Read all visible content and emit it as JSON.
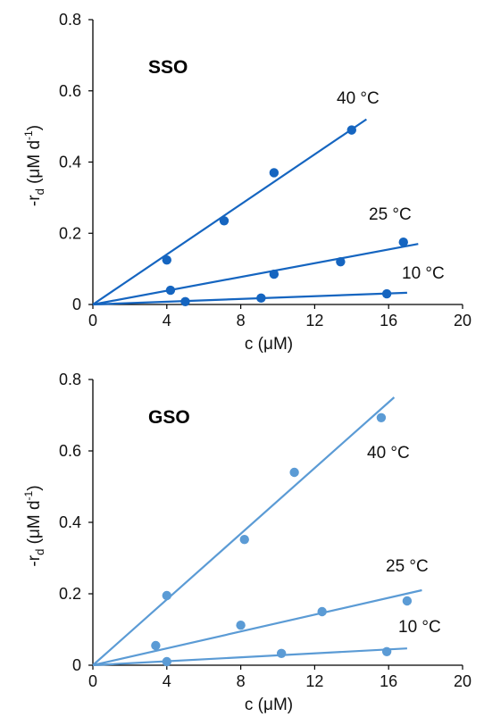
{
  "chart_data": [
    {
      "type": "scatter",
      "title": "SSO",
      "xlabel_main": "c (",
      "xlabel_unit": "μM",
      "xlabel_close": ")",
      "ylabel_main": "-r",
      "ylabel_sub": "d",
      "ylabel_paren": " (μM d",
      "ylabel_sup": "-1",
      "ylabel_close": ")",
      "xlim": [
        0,
        20
      ],
      "ylim": [
        0,
        0.8
      ],
      "xticks": [
        "0",
        "4",
        "8",
        "12",
        "16",
        "20"
      ],
      "yticks": [
        "0",
        "0.2",
        "0.4",
        "0.6",
        "0.8"
      ],
      "grid": false,
      "color": "#1565C0",
      "series": [
        {
          "name": "40 °C",
          "points": [
            [
              4.0,
              0.125
            ],
            [
              7.1,
              0.235
            ],
            [
              9.8,
              0.37
            ],
            [
              14.0,
              0.49
            ]
          ],
          "fit": [
            [
              0,
              0
            ],
            [
              14.8,
              0.52
            ]
          ]
        },
        {
          "name": "25 °C",
          "points": [
            [
              4.2,
              0.04
            ],
            [
              9.8,
              0.085
            ],
            [
              13.4,
              0.12
            ],
            [
              16.8,
              0.175
            ]
          ],
          "fit": [
            [
              0,
              0
            ],
            [
              17.6,
              0.17
            ]
          ]
        },
        {
          "name": "10 °C",
          "points": [
            [
              5.0,
              0.008
            ],
            [
              9.1,
              0.018
            ],
            [
              15.9,
              0.03
            ]
          ],
          "fit": [
            [
              0,
              0
            ],
            [
              17.0,
              0.033
            ]
          ]
        }
      ]
    },
    {
      "type": "scatter",
      "title": "GSO",
      "xlabel_main": "c (",
      "xlabel_unit": "μM",
      "xlabel_close": ")",
      "ylabel_main": "-r",
      "ylabel_sub": "d",
      "ylabel_paren": " (μM d",
      "ylabel_sup": "-1",
      "ylabel_close": ")",
      "xlim": [
        0,
        20
      ],
      "ylim": [
        0,
        0.8
      ],
      "xticks": [
        "0",
        "4",
        "8",
        "12",
        "16",
        "20"
      ],
      "yticks": [
        "0",
        "0.2",
        "0.4",
        "0.6",
        "0.8"
      ],
      "grid": false,
      "color": "#5B9BD5",
      "series": [
        {
          "name": "40 °C",
          "points": [
            [
              4.0,
              0.195
            ],
            [
              8.2,
              0.352
            ],
            [
              10.9,
              0.54
            ],
            [
              15.6,
              0.693
            ]
          ],
          "fit": [
            [
              0,
              0
            ],
            [
              16.3,
              0.75
            ]
          ]
        },
        {
          "name": "25 °C",
          "points": [
            [
              3.4,
              0.055
            ],
            [
              8.0,
              0.112
            ],
            [
              12.4,
              0.15
            ],
            [
              17.0,
              0.18
            ]
          ],
          "fit": [
            [
              0,
              0
            ],
            [
              17.8,
              0.21
            ]
          ]
        },
        {
          "name": "10 °C",
          "points": [
            [
              4.0,
              0.01
            ],
            [
              10.2,
              0.033
            ],
            [
              15.9,
              0.038
            ]
          ],
          "fit": [
            [
              0,
              0
            ],
            [
              17.0,
              0.047
            ]
          ]
        }
      ]
    }
  ]
}
